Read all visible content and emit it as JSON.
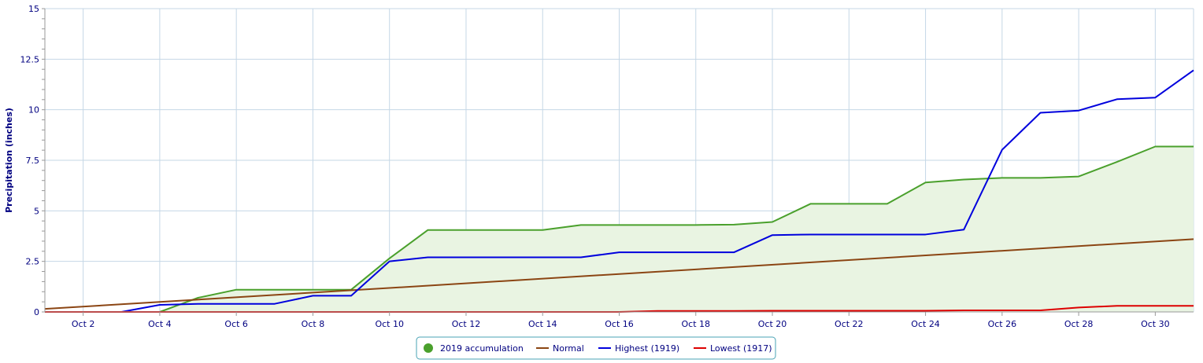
{
  "chart_data": {
    "type": "line",
    "title": "",
    "xlabel": "",
    "ylabel": "Precipitation (inches)",
    "x": [
      1,
      2,
      3,
      4,
      5,
      6,
      7,
      8,
      9,
      10,
      11,
      12,
      13,
      14,
      15,
      16,
      17,
      18,
      19,
      20,
      21,
      22,
      23,
      24,
      25,
      26,
      27,
      28,
      29,
      30,
      31
    ],
    "xlim": [
      1,
      31
    ],
    "ylim": [
      0,
      15
    ],
    "x_ticks": [
      {
        "x": 2,
        "label": "Oct 2"
      },
      {
        "x": 4,
        "label": "Oct 4"
      },
      {
        "x": 6,
        "label": "Oct 6"
      },
      {
        "x": 8,
        "label": "Oct 8"
      },
      {
        "x": 10,
        "label": "Oct 10"
      },
      {
        "x": 12,
        "label": "Oct 12"
      },
      {
        "x": 14,
        "label": "Oct 14"
      },
      {
        "x": 16,
        "label": "Oct 16"
      },
      {
        "x": 18,
        "label": "Oct 18"
      },
      {
        "x": 20,
        "label": "Oct 20"
      },
      {
        "x": 22,
        "label": "Oct 22"
      },
      {
        "x": 24,
        "label": "Oct 24"
      },
      {
        "x": 26,
        "label": "Oct 26"
      },
      {
        "x": 28,
        "label": "Oct 28"
      },
      {
        "x": 30,
        "label": "Oct 30"
      }
    ],
    "y_ticks": [
      {
        "y": 0,
        "label": "0"
      },
      {
        "y": 2.5,
        "label": "2.5"
      },
      {
        "y": 5,
        "label": "5"
      },
      {
        "y": 7.5,
        "label": "7.5"
      },
      {
        "y": 10,
        "label": "10"
      },
      {
        "y": 12.5,
        "label": "12.5"
      },
      {
        "y": 15,
        "label": "15"
      }
    ],
    "grid": true,
    "legend_position": "bottom-center",
    "series": [
      {
        "name": "2019 accumulation",
        "color": "#4aa02c",
        "fill": "#e9f4e2",
        "area": true,
        "marker": "circle",
        "x": [
          4,
          5,
          6,
          7,
          8,
          9,
          10,
          11,
          12,
          13,
          14,
          15,
          16,
          17,
          18,
          19,
          20,
          21,
          22,
          23,
          24,
          25,
          26,
          27,
          28,
          29,
          30,
          31
        ],
        "values": [
          0,
          0.7,
          1.1,
          1.1,
          1.1,
          1.1,
          2.65,
          4.05,
          4.05,
          4.05,
          4.05,
          4.3,
          4.3,
          4.3,
          4.3,
          4.32,
          4.45,
          5.35,
          5.35,
          5.35,
          6.4,
          6.55,
          6.63,
          6.63,
          6.7,
          7.42,
          8.18,
          8.18
        ]
      },
      {
        "name": "Normal",
        "color": "#8b4513",
        "x": [
          1,
          31
        ],
        "values": [
          0.15,
          3.6
        ]
      },
      {
        "name": "Highest (1919)",
        "color": "#0000dd",
        "x": [
          1,
          2,
          3,
          4,
          5,
          6,
          7,
          8,
          9,
          10,
          11,
          12,
          13,
          14,
          15,
          16,
          17,
          18,
          19,
          20,
          21,
          22,
          23,
          24,
          25,
          26,
          27,
          28,
          29,
          30,
          31
        ],
        "values": [
          0,
          0,
          0,
          0.35,
          0.4,
          0.4,
          0.4,
          0.8,
          0.8,
          2.5,
          2.7,
          2.7,
          2.7,
          2.7,
          2.7,
          2.95,
          2.95,
          2.95,
          2.95,
          3.8,
          3.83,
          3.83,
          3.83,
          3.83,
          4.07,
          8.02,
          9.85,
          9.96,
          10.52,
          10.6,
          11.95
        ]
      },
      {
        "name": "Lowest (1917)",
        "color": "#dd0000",
        "x": [
          1,
          2,
          3,
          4,
          5,
          6,
          7,
          8,
          9,
          10,
          11,
          12,
          13,
          14,
          15,
          16,
          17,
          18,
          19,
          20,
          21,
          22,
          23,
          24,
          25,
          26,
          27,
          28,
          29,
          30,
          31
        ],
        "values": [
          0,
          0,
          0,
          0,
          0,
          0,
          0,
          0,
          0,
          0,
          0,
          0,
          0,
          0,
          0,
          0,
          0.05,
          0.05,
          0.05,
          0.06,
          0.06,
          0.06,
          0.06,
          0.06,
          0.08,
          0.08,
          0.08,
          0.22,
          0.3,
          0.3,
          0.3
        ]
      }
    ]
  }
}
